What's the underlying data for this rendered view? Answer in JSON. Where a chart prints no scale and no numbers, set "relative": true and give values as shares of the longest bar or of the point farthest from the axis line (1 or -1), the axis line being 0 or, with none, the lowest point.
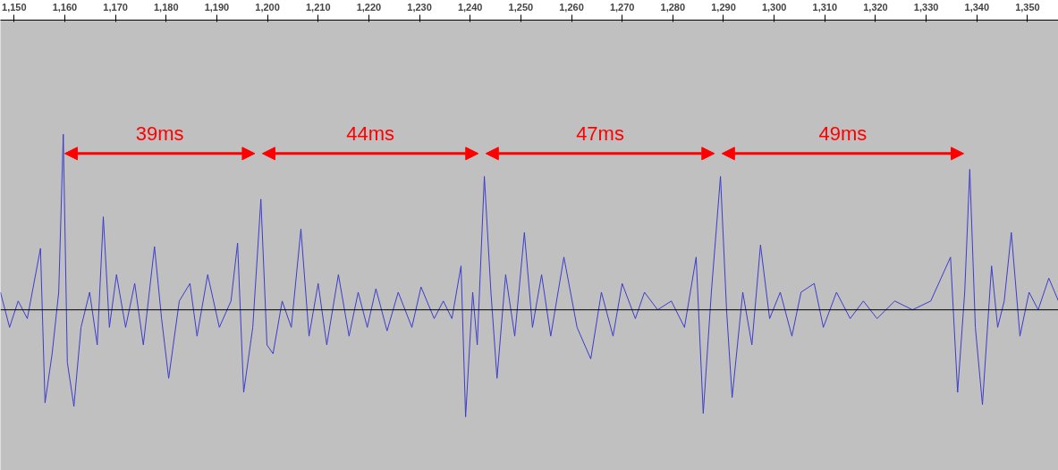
{
  "chart_data": {
    "type": "line",
    "relative": true,
    "grid": false,
    "marker": "none",
    "line_style": "solid",
    "xlim": [
      1147.3,
      1356.1
    ],
    "xticks": [
      {
        "value": 1150,
        "label": "1,150"
      },
      {
        "value": 1160,
        "label": "1,160"
      },
      {
        "value": 1170,
        "label": "1,170"
      },
      {
        "value": 1180,
        "label": "1,180"
      },
      {
        "value": 1190,
        "label": "1,190"
      },
      {
        "value": 1200,
        "label": "1,200"
      },
      {
        "value": 1210,
        "label": "1,210"
      },
      {
        "value": 1220,
        "label": "1,220"
      },
      {
        "value": 1230,
        "label": "1,230"
      },
      {
        "value": 1240,
        "label": "1,240"
      },
      {
        "value": 1250,
        "label": "1,250"
      },
      {
        "value": 1260,
        "label": "1,260"
      },
      {
        "value": 1270,
        "label": "1,270"
      },
      {
        "value": 1280,
        "label": "1,280"
      },
      {
        "value": 1290,
        "label": "1,290"
      },
      {
        "value": 1300,
        "label": "1,300"
      },
      {
        "value": 1310,
        "label": "1,310"
      },
      {
        "value": 1320,
        "label": "1,320"
      },
      {
        "value": 1330,
        "label": "1,330"
      },
      {
        "value": 1340,
        "label": "1,340"
      },
      {
        "value": 1350,
        "label": "1,350"
      }
    ],
    "tick_labels": "x",
    "series": [
      {
        "color": "#3c3ccc",
        "x": [
          1147.3,
          1149.1,
          1150.8,
          1152.6,
          1155.2,
          1156.1,
          1157.5,
          1158.8,
          1159.7,
          1160.5,
          1161.8,
          1163.2,
          1164.9,
          1166.4,
          1167.6,
          1168.8,
          1170.2,
          1172.0,
          1173.8,
          1175.5,
          1177.7,
          1179.1,
          1180.5,
          1182.6,
          1184.7,
          1186.1,
          1188.2,
          1190.5,
          1192.8,
          1194.1,
          1195.3,
          1197.1,
          1198.7,
          1199.9,
          1201.1,
          1202.9,
          1204.7,
          1206.6,
          1208.2,
          1210.0,
          1211.7,
          1214.0,
          1216.1,
          1217.9,
          1219.7,
          1221.4,
          1223.6,
          1225.8,
          1228.5,
          1230.3,
          1232.9,
          1234.7,
          1236.4,
          1238.2,
          1239.1,
          1240.5,
          1241.4,
          1242.8,
          1244.1,
          1245.3,
          1247.0,
          1248.8,
          1250.7,
          1252.3,
          1254.1,
          1255.9,
          1258.5,
          1261.1,
          1263.8,
          1265.9,
          1268.2,
          1270.0,
          1272.6,
          1274.4,
          1277.0,
          1279.7,
          1282.3,
          1284.6,
          1286.0,
          1287.6,
          1289.4,
          1290.6,
          1291.7,
          1293.8,
          1295.6,
          1297.3,
          1299.1,
          1301.2,
          1303.5,
          1305.3,
          1307.9,
          1309.7,
          1312.3,
          1315.0,
          1317.6,
          1320.3,
          1323.8,
          1327.3,
          1330.9,
          1334.8,
          1336.2,
          1337.6,
          1338.6,
          1339.7,
          1341.1,
          1342.9,
          1344.1,
          1345.4,
          1346.8,
          1348.5,
          1350.3,
          1352.1,
          1354.2,
          1356.1
        ],
        "values": [
          0.1,
          -0.1,
          0.05,
          -0.05,
          0.35,
          -0.53,
          -0.25,
          0.1,
          1.0,
          -0.3,
          -0.55,
          -0.1,
          0.1,
          -0.2,
          0.53,
          -0.1,
          0.2,
          -0.1,
          0.15,
          -0.2,
          0.36,
          -0.05,
          -0.39,
          0.05,
          0.15,
          -0.15,
          0.2,
          -0.1,
          0.05,
          0.38,
          -0.47,
          -0.1,
          0.63,
          -0.2,
          -0.25,
          0.05,
          -0.1,
          0.46,
          -0.15,
          0.15,
          -0.2,
          0.2,
          -0.15,
          0.1,
          -0.1,
          0.12,
          -0.12,
          0.1,
          -0.1,
          0.13,
          -0.05,
          0.05,
          -0.05,
          0.25,
          -0.61,
          0.1,
          -0.2,
          0.76,
          0.1,
          -0.39,
          0.2,
          -0.15,
          0.44,
          -0.1,
          0.2,
          -0.15,
          0.3,
          -0.1,
          -0.28,
          0.1,
          -0.15,
          0.15,
          -0.05,
          0.1,
          0.0,
          0.05,
          -0.1,
          0.3,
          -0.59,
          0.1,
          0.76,
          0.0,
          -0.5,
          0.1,
          -0.2,
          0.37,
          -0.05,
          0.1,
          -0.15,
          0.1,
          0.15,
          -0.1,
          0.1,
          -0.05,
          0.05,
          -0.05,
          0.05,
          0.0,
          0.05,
          0.3,
          -0.47,
          0.1,
          0.8,
          -0.1,
          -0.54,
          0.25,
          -0.1,
          0.05,
          0.44,
          -0.15,
          0.1,
          0.0,
          0.18,
          0.05
        ]
      }
    ],
    "annotations": [
      "39ms",
      "44ms",
      "47ms",
      "49ms"
    ]
  }
}
